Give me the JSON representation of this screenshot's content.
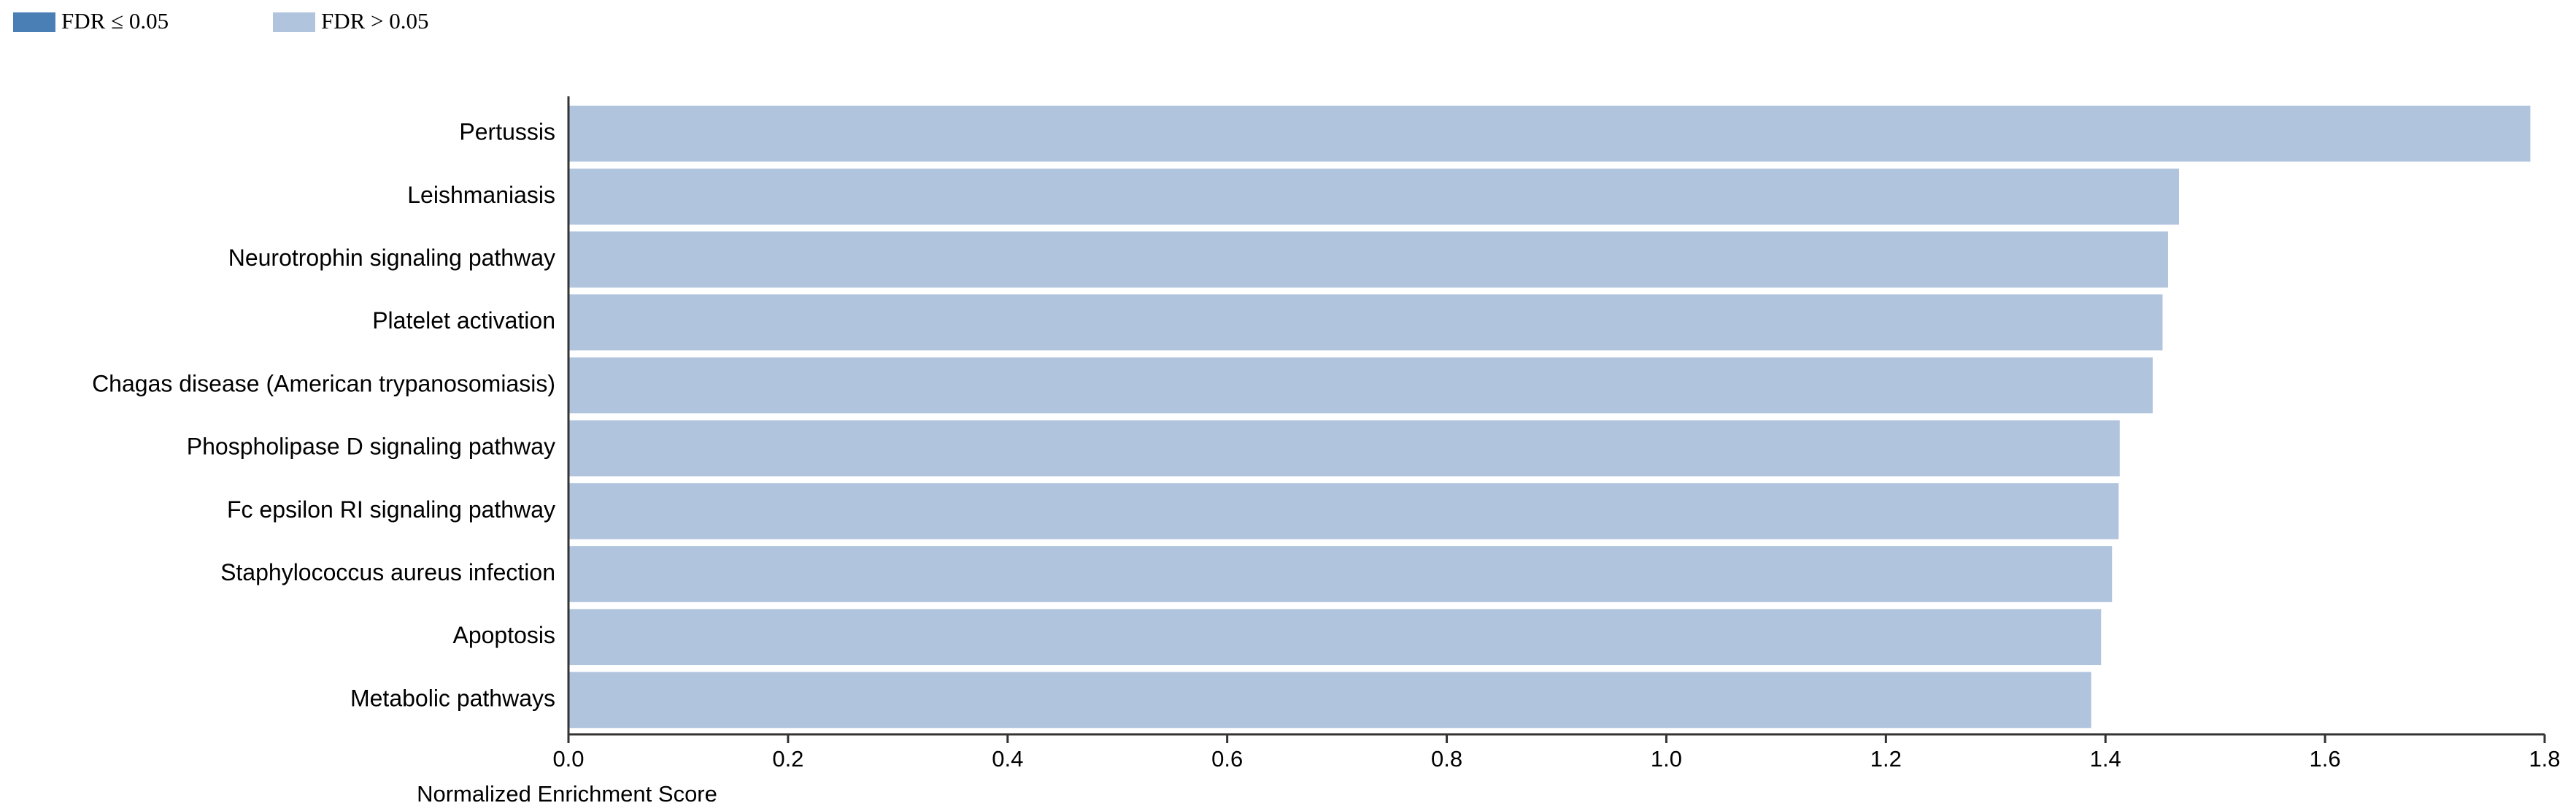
{
  "chart_data": {
    "type": "bar",
    "orientation": "horizontal",
    "legend": [
      {
        "label": "FDR ≤ 0.05",
        "color": "#4a7fb5"
      },
      {
        "label": "FDR > 0.05",
        "color": "#b0c4de"
      }
    ],
    "categories": [
      "Pertussis",
      "Leishmaniasis",
      "Neurotrophin signaling pathway",
      "Platelet activation",
      "Chagas disease (American trypanosomiasis)",
      "Phospholipase D signaling pathway",
      "Fc epsilon RI signaling pathway",
      "Staphylococcus aureus infection",
      "Apoptosis",
      "Metabolic pathways"
    ],
    "values": [
      1.787,
      1.467,
      1.457,
      1.452,
      1.443,
      1.413,
      1.412,
      1.406,
      1.396,
      1.387
    ],
    "color": "#b0c4de",
    "xlabel": "Normalized Enrichment Score",
    "xlim": [
      0,
      1.8
    ],
    "xticks": [
      {
        "value": 0,
        "label": "0.0"
      },
      0.2,
      0.4,
      0.6,
      0.8,
      {
        "value": 1,
        "label": "1.0"
      },
      1.2,
      1.4,
      1.6,
      1.8
    ]
  }
}
